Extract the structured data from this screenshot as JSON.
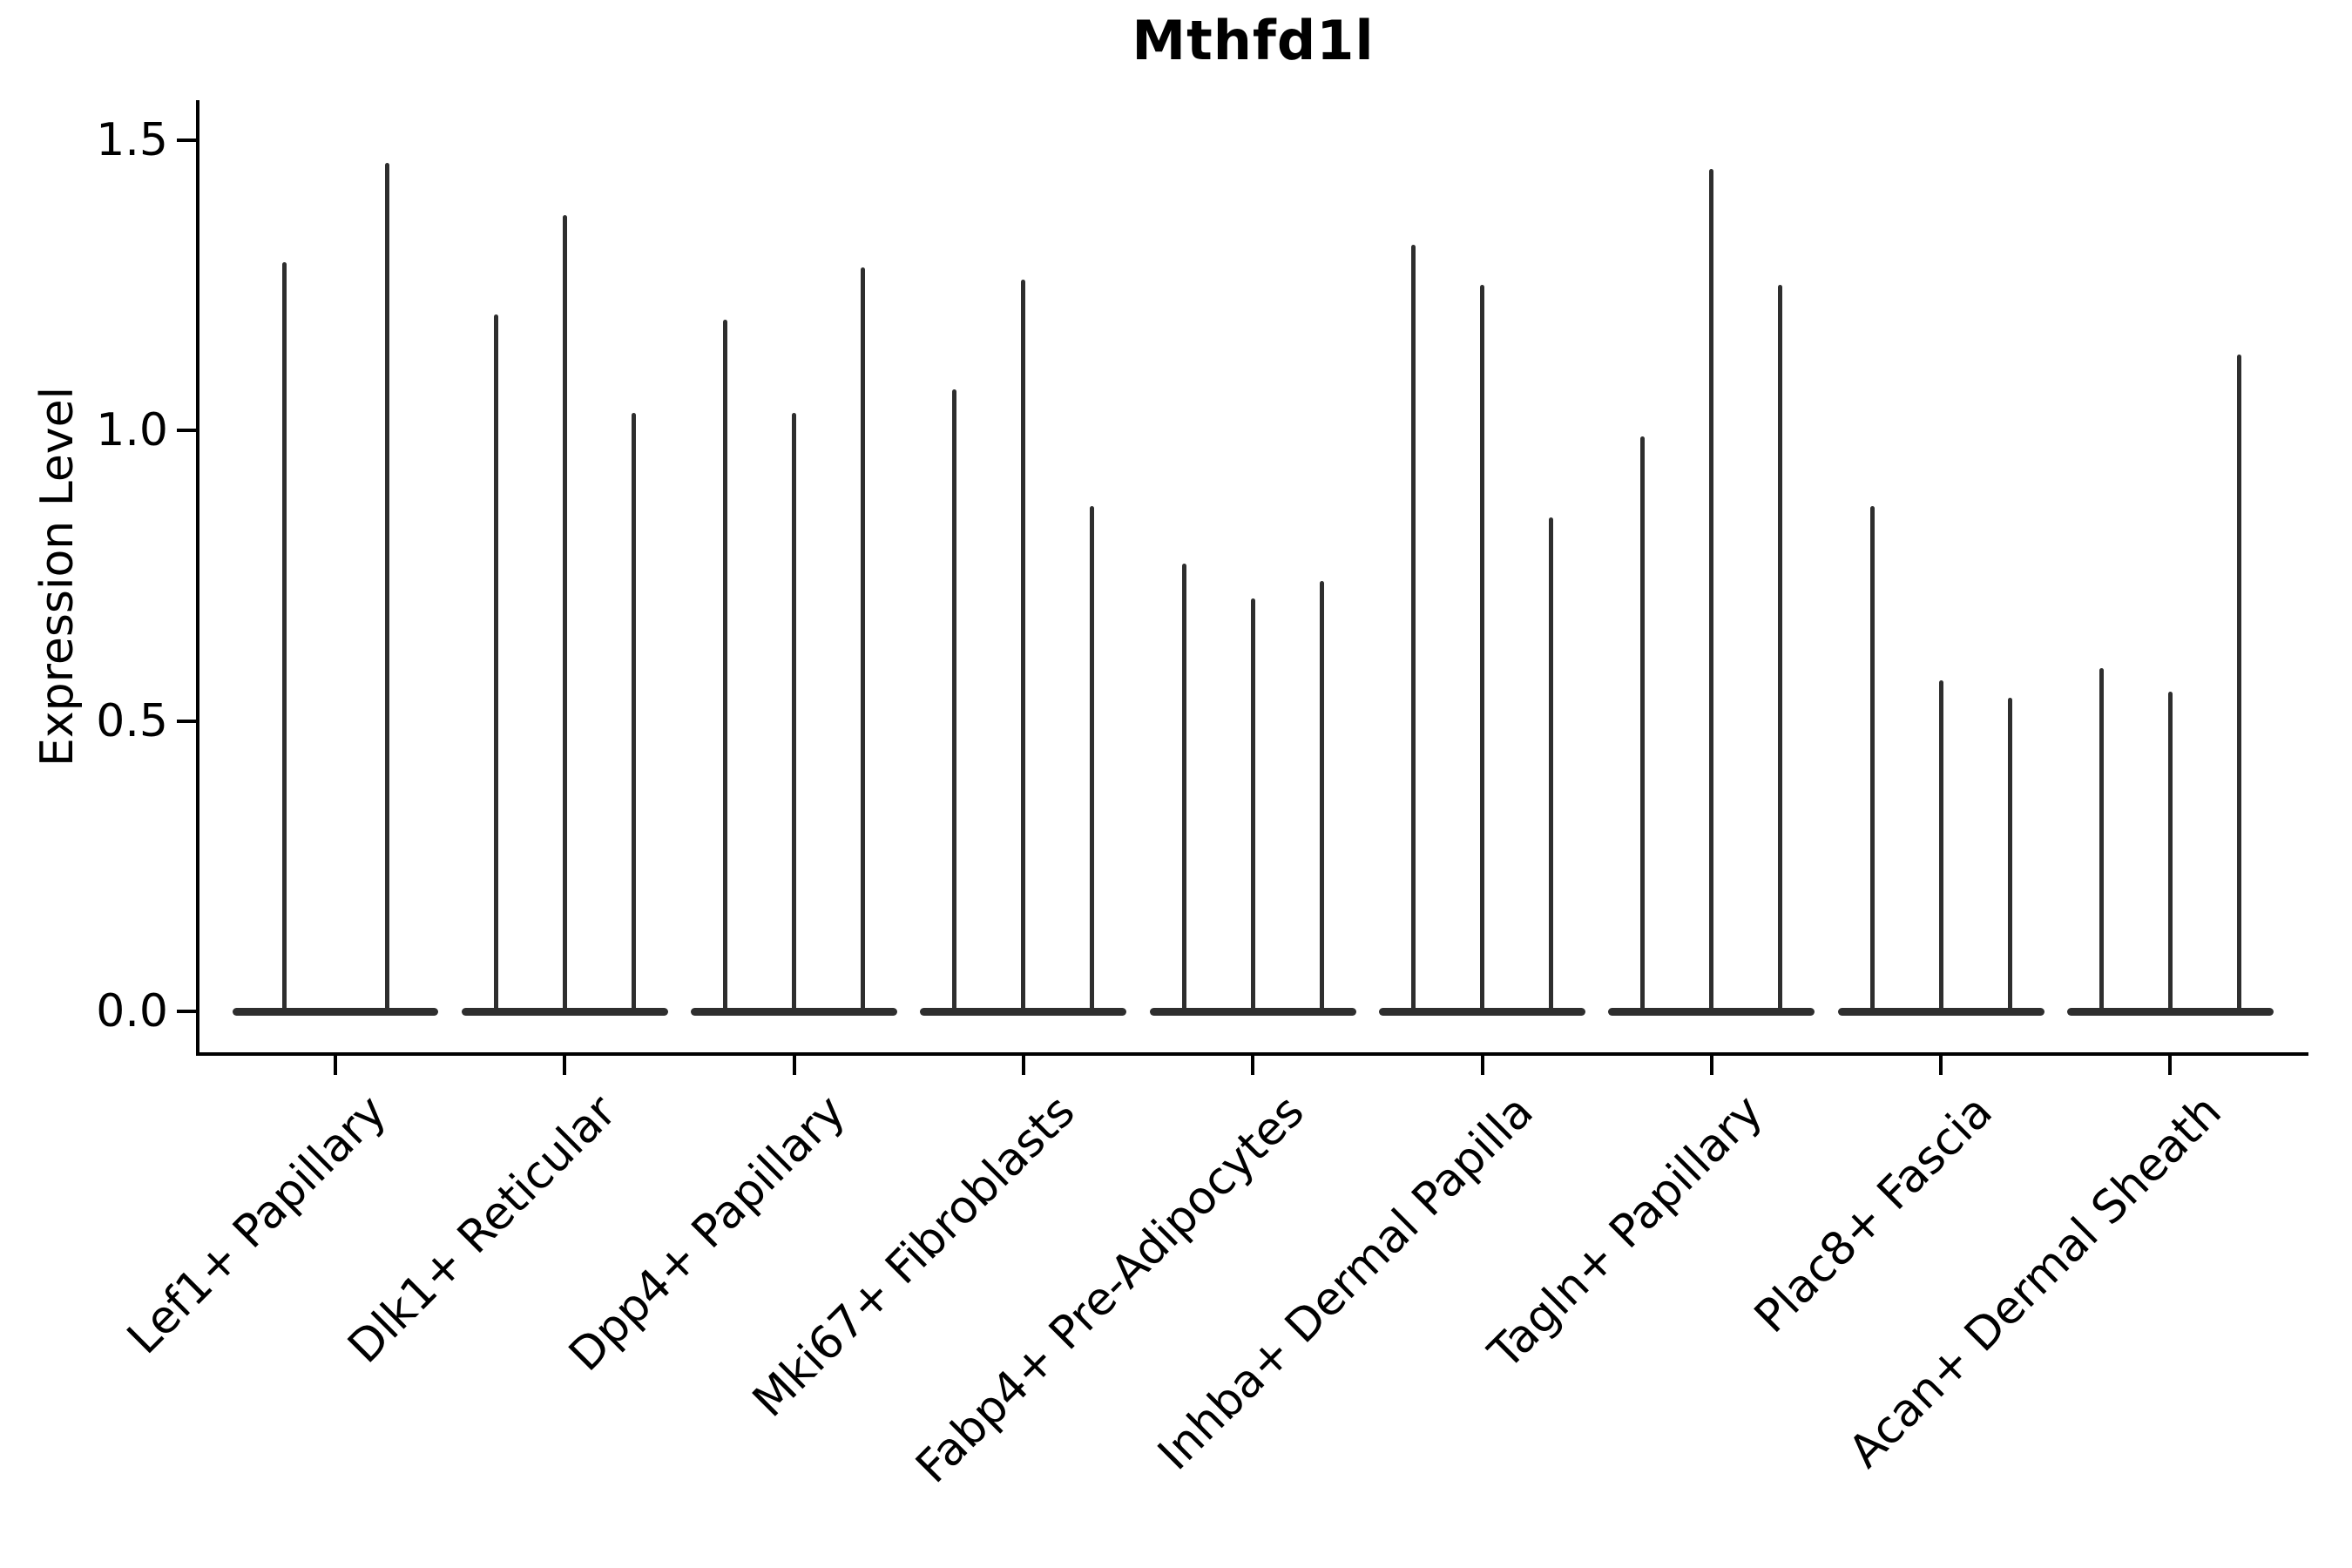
{
  "figure": {
    "background": "#ffffff",
    "violin_color": "#2e2e2e",
    "axis_color": "#000000",
    "text_color": "#000000"
  },
  "chart_data": {
    "type": "violin",
    "title": "Mthfd1l",
    "ylabel": "Expression Level",
    "xlabel": "",
    "ylim": [
      0,
      1.5
    ],
    "yticks": [
      0.0,
      0.5,
      1.0,
      1.5
    ],
    "ytick_labels": [
      "0.0",
      "0.5",
      "1.0",
      "1.5"
    ],
    "grid": false,
    "legend_position": "none",
    "style_note": "Seurat-style stacked violin: each violin is collapsed into a wide flat blob at 0 (most cells have zero expression) with a single thin vertical density spike rising to the maximum expression value.",
    "categories": [
      "Lef1+ Papillary",
      "Dlk1+ Reticular",
      "Dpp4+ Papillary",
      "Mki67+ Fibroblasts",
      "Fabp4+ Pre-Adipocytes",
      "Inhba+ Dermal Papilla",
      "Tagln+ Papillary",
      "Plac8+ Fascia",
      "Acan+ Dermal Sheath"
    ],
    "series": [
      {
        "category": "Lef1+ Papillary",
        "violin_count": 2,
        "violin_max_values": [
          1.29,
          1.46
        ]
      },
      {
        "category": "Dlk1+ Reticular",
        "violin_count": 3,
        "violin_max_values": [
          1.2,
          1.37,
          1.03
        ]
      },
      {
        "category": "Dpp4+ Papillary",
        "violin_count": 3,
        "violin_max_values": [
          1.19,
          1.03,
          1.28
        ]
      },
      {
        "category": "Mki67+ Fibroblasts",
        "violin_count": 3,
        "violin_max_values": [
          1.07,
          1.26,
          0.87
        ]
      },
      {
        "category": "Fabp4+ Pre-Adipocytes",
        "violin_count": 3,
        "violin_max_values": [
          0.77,
          0.71,
          0.74
        ]
      },
      {
        "category": "Inhba+ Dermal Papilla",
        "violin_count": 3,
        "violin_max_values": [
          1.32,
          1.25,
          0.85
        ]
      },
      {
        "category": "Tagln+ Papillary",
        "violin_count": 3,
        "violin_max_values": [
          0.99,
          1.45,
          1.25
        ]
      },
      {
        "category": "Plac8+ Fascia",
        "violin_count": 3,
        "violin_max_values": [
          0.87,
          0.57,
          0.54
        ]
      },
      {
        "category": "Acan+ Dermal Sheath",
        "violin_count": 3,
        "violin_max_values": [
          0.59,
          0.55,
          1.13
        ]
      }
    ]
  }
}
